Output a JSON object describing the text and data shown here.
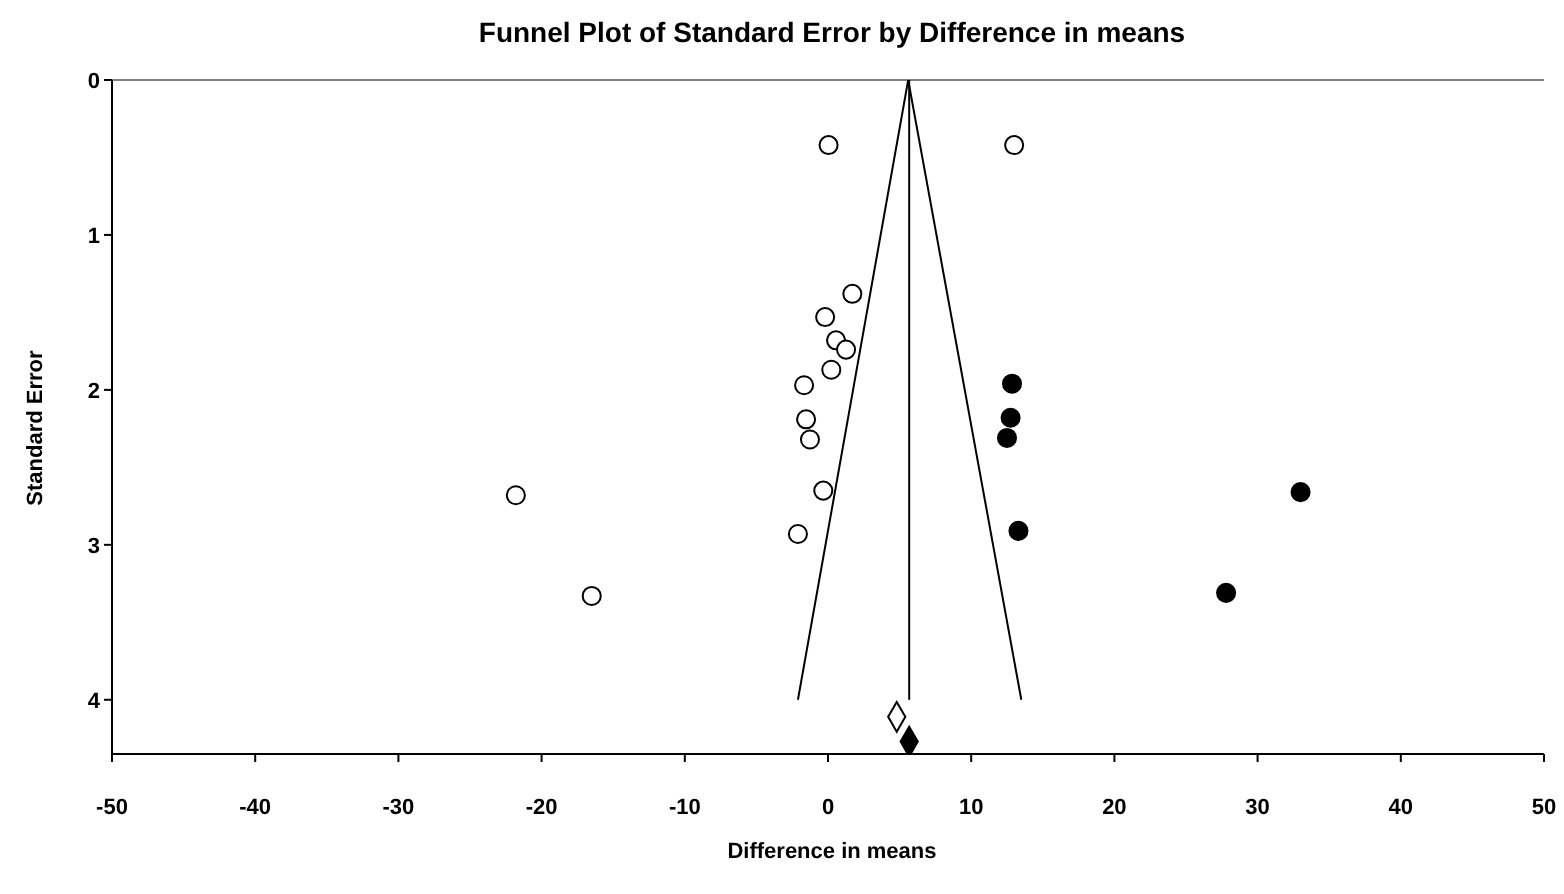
{
  "chart_data": {
    "type": "scatter",
    "title": "Funnel Plot of Standard Error by Difference in means",
    "xlabel": "Difference in means",
    "ylabel": "Standard Error",
    "xlim": [
      -50,
      50
    ],
    "xticks": [
      -50,
      -40,
      -30,
      -20,
      -10,
      0,
      10,
      20,
      30,
      40,
      50
    ],
    "ylim": [
      4.35,
      0
    ],
    "yticks": [
      0,
      1,
      2,
      3,
      4
    ],
    "grid": false,
    "legend": false,
    "marker": "circle",
    "series": [
      {
        "type": "line",
        "color": "#000000",
        "marker": "none",
        "x": [
          -2.1,
          5.6,
          13.5
        ],
        "values": [
          4,
          0,
          4
        ]
      },
      {
        "type": "line",
        "color": "#000000",
        "marker": "none",
        "x": [
          5.67,
          5.67
        ],
        "values": [
          0,
          4
        ]
      },
      {
        "color": "#ffffff",
        "x": [
          0.04,
          13.0,
          1.7,
          -0.2,
          0.56,
          1.26,
          0.23,
          -1.67,
          -1.53,
          -1.26,
          -0.33,
          -21.8,
          -2.1,
          -16.5
        ],
        "values": [
          0.42,
          0.42,
          1.38,
          1.53,
          1.68,
          1.74,
          1.87,
          1.97,
          2.19,
          2.32,
          2.65,
          2.68,
          2.93,
          3.33
        ]
      },
      {
        "color": "#000000",
        "x": [
          12.85,
          12.75,
          12.5,
          13.3,
          33.0,
          27.8
        ],
        "values": [
          1.96,
          2.18,
          2.31,
          2.91,
          2.66,
          3.31
        ]
      },
      {
        "type": "scatter",
        "color": "#ffffff",
        "marker": "diamond",
        "x": [
          4.8
        ],
        "values": [
          4.11
        ]
      },
      {
        "type": "scatter",
        "color": "#000000",
        "marker": "diamond",
        "x": [
          5.67
        ],
        "values": [
          4.27
        ]
      }
    ]
  }
}
